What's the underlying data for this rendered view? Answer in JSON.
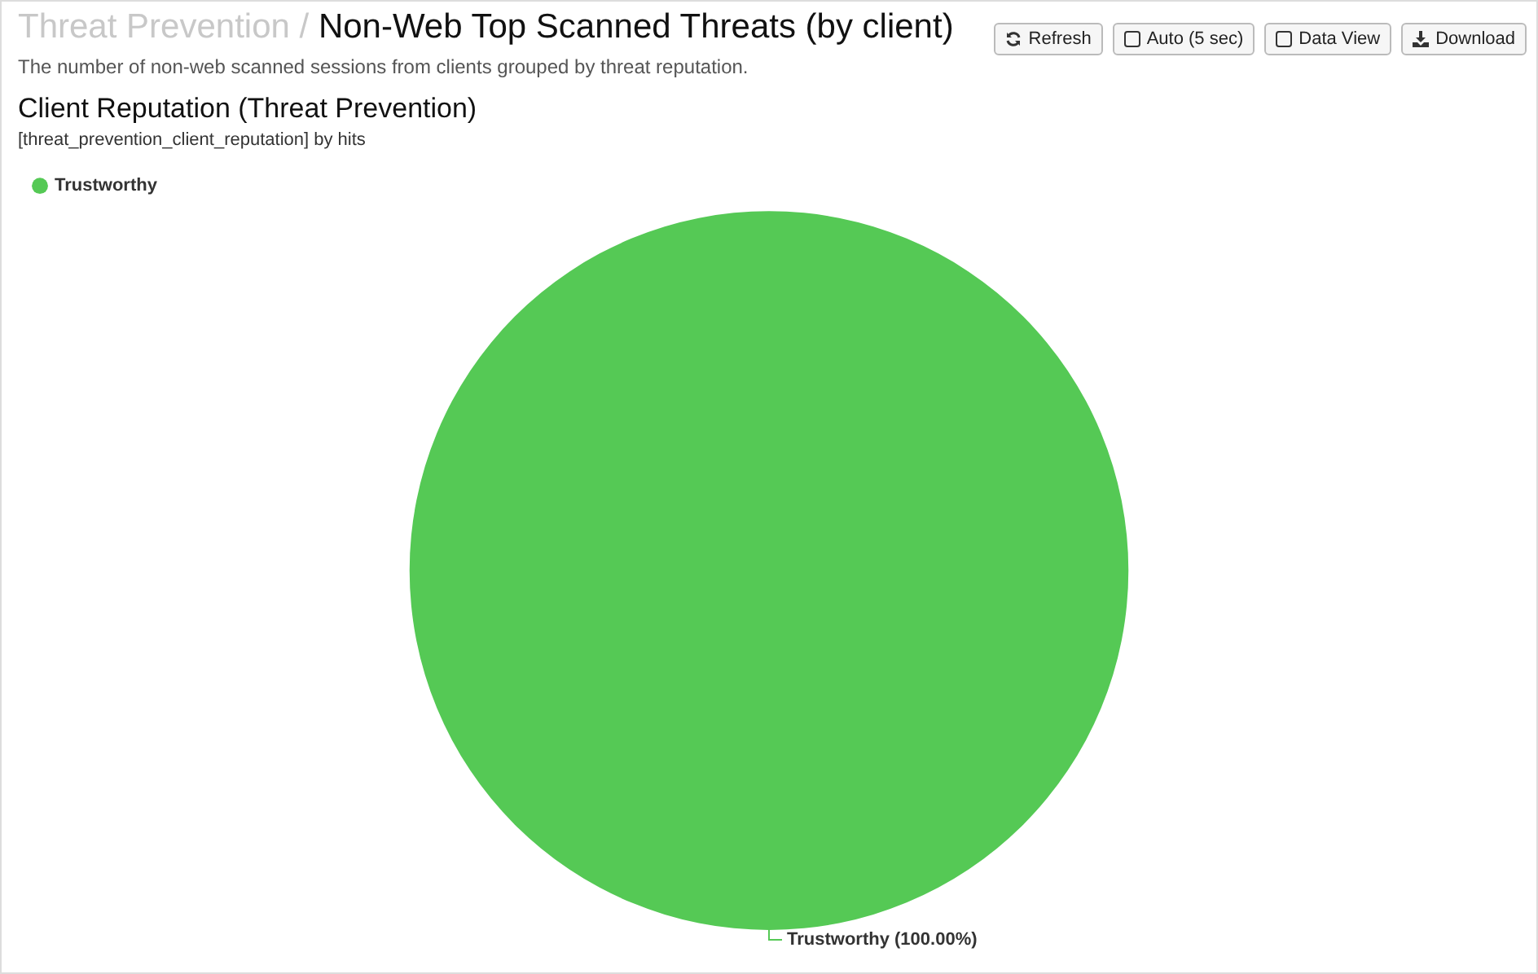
{
  "chart_data": {
    "type": "pie",
    "title": "Client Reputation (Threat Prevention)",
    "subtitle": "[threat_prevention_client_reputation] by hits",
    "categories": [
      "Trustworthy"
    ],
    "values": [
      100
    ],
    "colors": [
      "#55c955"
    ],
    "value_labels": [
      "Trustworthy (100.00%)"
    ],
    "legend": "top left",
    "annotations": [
      "Threat Prevention /",
      "Non-Web Top Scanned Threats (by client)",
      "The number of non-web scanned sessions from clients grouped by threat reputation.",
      "Refresh",
      "Auto (5 sec)",
      "Data View",
      "Download"
    ]
  }
}
